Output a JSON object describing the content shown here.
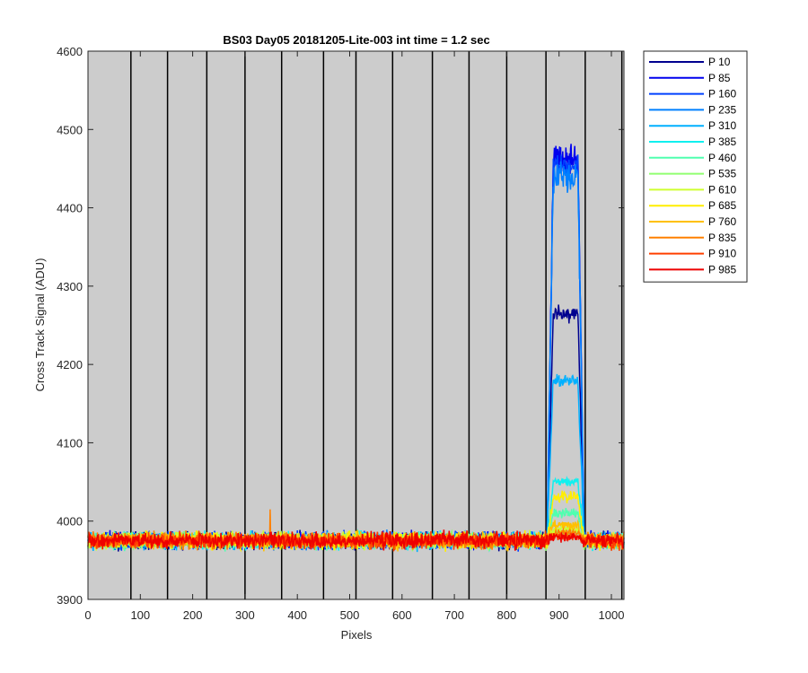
{
  "chart_data": {
    "type": "line",
    "title": "BS03 Day05 20181205-Lite-003 int time = 1.2 sec",
    "xlabel": "Pixels",
    "ylabel": "Cross Track Signal (ADU)",
    "xlim": [
      0,
      1024
    ],
    "ylim": [
      3900,
      4600
    ],
    "xticks": [
      0,
      100,
      200,
      300,
      400,
      500,
      600,
      700,
      800,
      900,
      1000
    ],
    "yticks": [
      3900,
      4000,
      4100,
      4200,
      4300,
      4400,
      4500,
      4600
    ],
    "background": "#cccccc",
    "grid": false,
    "legend_position": "outside-right",
    "vertical_lines_x": [
      82,
      152,
      227,
      300,
      370,
      450,
      512,
      582,
      658,
      728,
      800,
      875,
      950,
      1020
    ],
    "baseline": 3975,
    "baseline_noise": 15,
    "bump": {
      "x_start": 877,
      "x_end": 948,
      "ramp_width": 12,
      "noise_by_series": [
        15,
        35,
        25,
        30,
        12,
        8,
        10,
        6,
        10,
        12,
        10,
        8,
        8,
        8
      ],
      "plateau_by_series": [
        4265,
        4460,
        4455,
        4440,
        4180,
        4050,
        4010,
        3985,
        3990,
        4030,
        3995,
        3985,
        3980,
        3980
      ]
    },
    "outlier": {
      "series": "P 835",
      "x": 348,
      "y": 4015
    },
    "series": [
      {
        "name": "P 10",
        "color": "#00008f"
      },
      {
        "name": "P 85",
        "color": "#0000ee"
      },
      {
        "name": "P 160",
        "color": "#0040ff"
      },
      {
        "name": "P 235",
        "color": "#0080ff"
      },
      {
        "name": "P 310",
        "color": "#00b0ff"
      },
      {
        "name": "P 385",
        "color": "#10f0ef"
      },
      {
        "name": "P 460",
        "color": "#50ffaf"
      },
      {
        "name": "P 535",
        "color": "#90ff70"
      },
      {
        "name": "P 610",
        "color": "#cfff30"
      },
      {
        "name": "P 685",
        "color": "#ffee00"
      },
      {
        "name": "P 760",
        "color": "#ffc000"
      },
      {
        "name": "P 835",
        "color": "#ff8000"
      },
      {
        "name": "P 910",
        "color": "#ff4000"
      },
      {
        "name": "P 985",
        "color": "#ee0000"
      }
    ]
  }
}
